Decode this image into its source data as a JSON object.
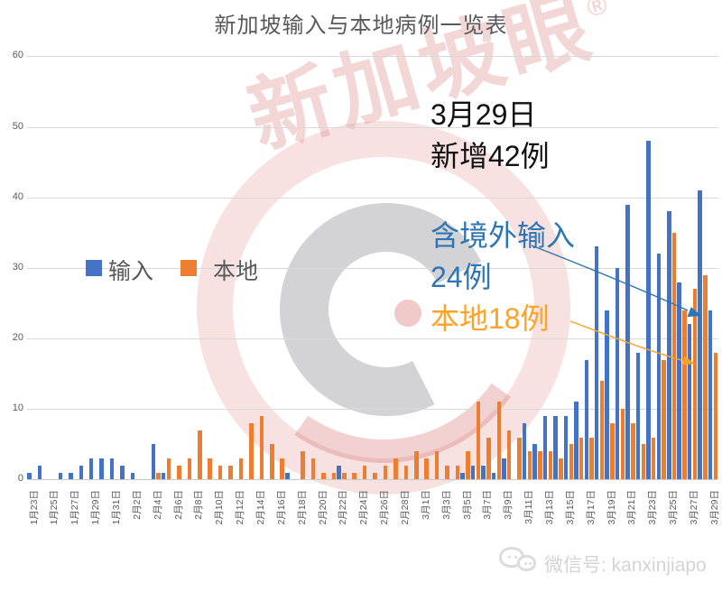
{
  "title": "新加坡输入与本地病例一览表",
  "legend": {
    "imported_label": "输入",
    "local_label": "本地",
    "imported_color": "#4472C4",
    "local_color": "#ED7D31"
  },
  "annotations": {
    "date_line": "3月29日",
    "total_line": "新增42例",
    "imported_line1": "含境外输入",
    "imported_line2": "24例",
    "local_line": "本地18例",
    "imported_text_color": "#2E75B6",
    "local_text_color": "#FFA226"
  },
  "watermark": {
    "text": "新加坡眼",
    "reg": "®"
  },
  "footer": {
    "wechat_label": "微信号: kanxinjiapo"
  },
  "chart_data": {
    "type": "bar",
    "title": "新加坡输入与本地病例一览表",
    "ylim": [
      0,
      60
    ],
    "y_ticks": [
      0,
      10,
      20,
      30,
      40,
      50,
      60
    ],
    "grid": true,
    "legend_position": "left-middle",
    "x_label_interval": 2,
    "categories": [
      "1月23日",
      "1月24日",
      "1月25日",
      "1月26日",
      "1月27日",
      "1月28日",
      "1月29日",
      "1月30日",
      "1月31日",
      "2月1日",
      "2月2日",
      "2月3日",
      "2月4日",
      "2月5日",
      "2月6日",
      "2月7日",
      "2月8日",
      "2月9日",
      "2月10日",
      "2月11日",
      "2月12日",
      "2月13日",
      "2月14日",
      "2月15日",
      "2月16日",
      "2月17日",
      "2月18日",
      "2月19日",
      "2月20日",
      "2月21日",
      "2月22日",
      "2月23日",
      "2月24日",
      "2月25日",
      "2月26日",
      "2月27日",
      "2月28日",
      "2月29日",
      "3月1日",
      "3月2日",
      "3月3日",
      "3月4日",
      "3月5日",
      "3月6日",
      "3月7日",
      "3月8日",
      "3月9日",
      "3月10日",
      "3月11日",
      "3月12日",
      "3月13日",
      "3月14日",
      "3月15日",
      "3月16日",
      "3月17日",
      "3月18日",
      "3月19日",
      "3月20日",
      "3月21日",
      "3月22日",
      "3月23日",
      "3月24日",
      "3月25日",
      "3月26日",
      "3月27日",
      "3月28日",
      "3月29日"
    ],
    "series": [
      {
        "name": "输入",
        "color": "#4472C4",
        "values": [
          1,
          2,
          0,
          1,
          1,
          2,
          3,
          3,
          3,
          2,
          1,
          0,
          5,
          1,
          0,
          0,
          0,
          0,
          0,
          0,
          0,
          0,
          0,
          0,
          0,
          1,
          0,
          0,
          0,
          0,
          2,
          0,
          0,
          0,
          0,
          0,
          0,
          0,
          0,
          0,
          0,
          0,
          1,
          2,
          2,
          1,
          3,
          0,
          8,
          5,
          9,
          9,
          9,
          11,
          17,
          33,
          24,
          30,
          39,
          18,
          48,
          32,
          38,
          28,
          22,
          41,
          24
        ]
      },
      {
        "name": "本地",
        "color": "#ED7D31",
        "values": [
          0,
          0,
          0,
          0,
          0,
          0,
          0,
          0,
          0,
          0,
          0,
          0,
          1,
          3,
          2,
          3,
          7,
          3,
          2,
          2,
          3,
          8,
          9,
          5,
          3,
          0,
          4,
          3,
          1,
          1,
          1,
          1,
          2,
          1,
          2,
          3,
          2,
          4,
          3,
          4,
          2,
          2,
          4,
          11,
          6,
          11,
          7,
          6,
          4,
          4,
          4,
          3,
          5,
          6,
          6,
          14,
          8,
          10,
          8,
          5,
          6,
          17,
          35,
          24,
          27,
          29,
          18
        ]
      }
    ]
  }
}
